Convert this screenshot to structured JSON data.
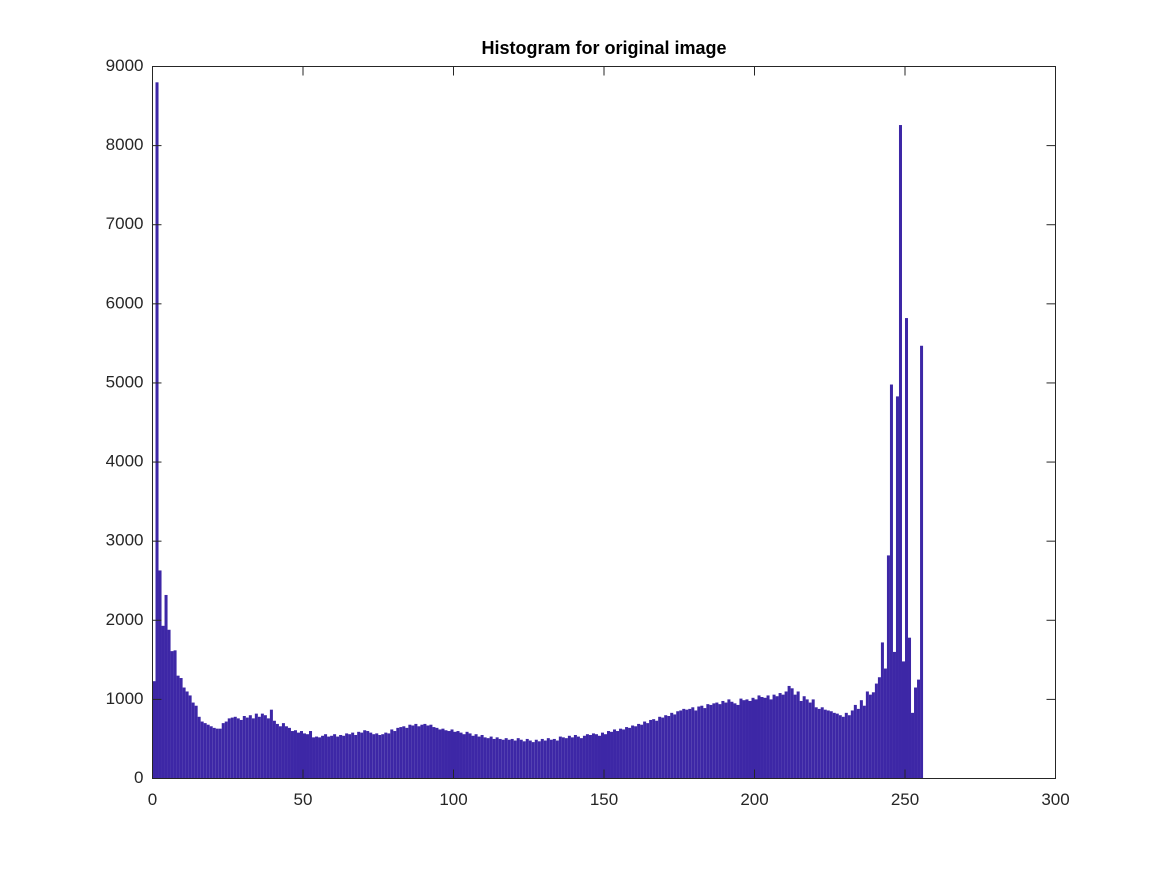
{
  "chart_data": {
    "type": "histogram",
    "title": "Histogram for original image",
    "color": "#3d27a6",
    "bins": [
      0,
      1,
      2,
      3,
      4,
      5,
      6,
      7,
      8,
      9,
      10,
      11,
      12,
      13,
      14,
      15,
      16,
      17,
      18,
      19,
      20,
      21,
      22,
      23,
      24,
      25,
      26,
      27,
      28,
      29,
      30,
      31,
      32,
      33,
      34,
      35,
      36,
      37,
      38,
      39,
      40,
      41,
      42,
      43,
      44,
      45,
      46,
      47,
      48,
      49,
      50,
      51,
      52,
      53,
      54,
      55,
      56,
      57,
      58,
      59,
      60,
      61,
      62,
      63,
      64,
      65,
      66,
      67,
      68,
      69,
      70,
      71,
      72,
      73,
      74,
      75,
      76,
      77,
      78,
      79,
      80,
      81,
      82,
      83,
      84,
      85,
      86,
      87,
      88,
      89,
      90,
      91,
      92,
      93,
      94,
      95,
      96,
      97,
      98,
      99,
      100,
      101,
      102,
      103,
      104,
      105,
      106,
      107,
      108,
      109,
      110,
      111,
      112,
      113,
      114,
      115,
      116,
      117,
      118,
      119,
      120,
      121,
      122,
      123,
      124,
      125,
      126,
      127,
      128,
      129,
      130,
      131,
      132,
      133,
      134,
      135,
      136,
      137,
      138,
      139,
      140,
      141,
      142,
      143,
      144,
      145,
      146,
      147,
      148,
      149,
      150,
      151,
      152,
      153,
      154,
      155,
      156,
      157,
      158,
      159,
      160,
      161,
      162,
      163,
      164,
      165,
      166,
      167,
      168,
      169,
      170,
      171,
      172,
      173,
      174,
      175,
      176,
      177,
      178,
      179,
      180,
      181,
      182,
      183,
      184,
      185,
      186,
      187,
      188,
      189,
      190,
      191,
      192,
      193,
      194,
      195,
      196,
      197,
      198,
      199,
      200,
      201,
      202,
      203,
      204,
      205,
      206,
      207,
      208,
      209,
      210,
      211,
      212,
      213,
      214,
      215,
      216,
      217,
      218,
      219,
      220,
      221,
      222,
      223,
      224,
      225,
      226,
      227,
      228,
      229,
      230,
      231,
      232,
      233,
      234,
      235,
      236,
      237,
      238,
      239,
      240,
      241,
      242,
      243,
      244,
      245,
      246,
      247,
      248,
      249,
      250,
      251,
      252,
      253,
      254,
      255,
      256
    ],
    "values": [
      1230,
      8800,
      2630,
      1930,
      2320,
      1880,
      1610,
      1620,
      1300,
      1270,
      1150,
      1100,
      1050,
      960,
      920,
      780,
      720,
      700,
      680,
      660,
      640,
      630,
      630,
      700,
      720,
      760,
      770,
      780,
      760,
      740,
      790,
      770,
      800,
      760,
      820,
      780,
      820,
      800,
      760,
      870,
      730,
      690,
      660,
      700,
      660,
      640,
      600,
      610,
      580,
      600,
      570,
      560,
      600,
      520,
      530,
      520,
      540,
      560,
      530,
      540,
      560,
      530,
      550,
      540,
      570,
      560,
      580,
      550,
      590,
      580,
      610,
      600,
      580,
      560,
      570,
      550,
      560,
      580,
      570,
      620,
      600,
      640,
      650,
      660,
      640,
      680,
      670,
      690,
      660,
      680,
      690,
      670,
      680,
      650,
      640,
      620,
      630,
      610,
      600,
      620,
      590,
      600,
      580,
      560,
      590,
      570,
      540,
      560,
      530,
      550,
      520,
      510,
      530,
      500,
      520,
      500,
      490,
      510,
      490,
      500,
      480,
      510,
      490,
      470,
      500,
      480,
      460,
      490,
      470,
      500,
      480,
      510,
      490,
      500,
      480,
      530,
      520,
      510,
      540,
      520,
      550,
      530,
      510,
      540,
      560,
      550,
      570,
      560,
      540,
      580,
      560,
      600,
      590,
      620,
      600,
      630,
      620,
      650,
      640,
      670,
      660,
      690,
      680,
      720,
      700,
      740,
      750,
      730,
      780,
      770,
      800,
      790,
      830,
      810,
      850,
      860,
      880,
      870,
      880,
      900,
      860,
      910,
      920,
      890,
      940,
      930,
      950,
      960,
      940,
      980,
      960,
      1000,
      970,
      950,
      930,
      1010,
      990,
      1000,
      980,
      1020,
      1000,
      1050,
      1030,
      1020,
      1050,
      1000,
      1060,
      1040,
      1080,
      1060,
      1100,
      1170,
      1140,
      1060,
      1100,
      980,
      1040,
      1000,
      960,
      1000,
      900,
      880,
      900,
      870,
      860,
      850,
      830,
      820,
      800,
      780,
      830,
      800,
      860,
      930,
      880,
      990,
      920,
      1100,
      1060,
      1090,
      1200,
      1280,
      1720,
      1390,
      2820,
      4980,
      1600,
      4830,
      8260,
      1480,
      5820,
      1780,
      830,
      1150,
      1250,
      5470
    ],
    "xlim": [
      0,
      300
    ],
    "xticks": [
      0,
      50,
      100,
      150,
      200,
      250,
      300
    ],
    "ylim": [
      0,
      9000
    ],
    "yticks": [
      0,
      1000,
      2000,
      3000,
      4000,
      5000,
      6000,
      7000,
      8000,
      9000
    ]
  }
}
